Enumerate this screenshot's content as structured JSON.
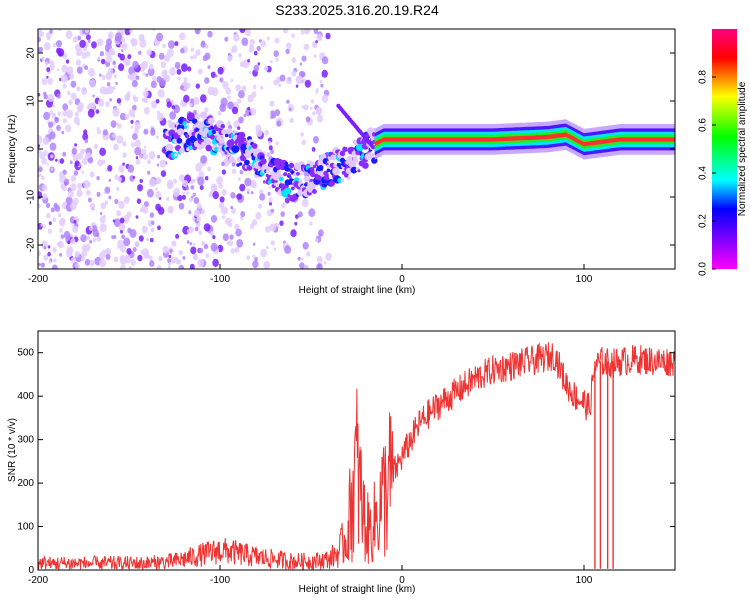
{
  "title": "S233.2025.316.20.19.R24",
  "chart_data": [
    {
      "type": "heatmap",
      "xlabel": "Height of straight line (km)",
      "ylabel": "Frequency (Hz)",
      "xlim": [
        -200,
        150
      ],
      "ylim": [
        -25,
        25
      ],
      "xticks": [
        -200,
        -100,
        0,
        100
      ],
      "yticks": [
        -20,
        -10,
        0,
        10,
        20
      ],
      "colorbar": {
        "label": "Normalized spectral amplitude",
        "range": [
          0,
          1
        ],
        "ticks": [
          0.0,
          0.2,
          0.4,
          0.6,
          0.8
        ],
        "colormap": "hsv-reversed (magenta-blue-cyan-green-yellow-red)"
      },
      "dominant_frequency_trace": {
        "x": [
          -130,
          -120,
          -110,
          -100,
          -90,
          -80,
          -70,
          -60,
          -50,
          -40,
          -30,
          -20,
          -15,
          -10,
          0,
          50,
          80,
          90,
          100,
          120,
          150
        ],
        "y": [
          1,
          3,
          4,
          2,
          0,
          -2,
          -5,
          -7,
          -6,
          -4,
          -3,
          0,
          1,
          2,
          2,
          2,
          2.5,
          3,
          1,
          2,
          2
        ]
      },
      "noise_region_x": [
        -200,
        -40
      ]
    },
    {
      "type": "line",
      "xlabel": "Height of straight line (km)",
      "ylabel": "SNR (10 * v/v)",
      "xlim": [
        -200,
        150
      ],
      "ylim": [
        0,
        550
      ],
      "xticks": [
        -200,
        -100,
        0,
        100
      ],
      "yticks": [
        0,
        100,
        200,
        300,
        400,
        500
      ],
      "line_color": "#ee3333",
      "series": [
        {
          "x": [
            -200,
            -180,
            -160,
            -140,
            -125,
            -115,
            -100,
            -92,
            -80,
            -70,
            -60,
            -50,
            -45,
            -40,
            -35,
            -30,
            -28,
            -25,
            -22,
            -20,
            -18,
            -15,
            -12,
            -10,
            -5,
            0,
            5,
            10,
            20,
            30,
            40,
            50,
            60,
            70,
            80,
            84,
            90,
            95,
            100,
            103,
            106,
            110,
            115,
            120,
            130,
            140,
            150
          ],
          "y": [
            15,
            15,
            15,
            15,
            20,
            30,
            45,
            40,
            30,
            25,
            20,
            20,
            22,
            25,
            40,
            80,
            150,
            240,
            150,
            100,
            90,
            110,
            150,
            170,
            220,
            260,
            300,
            340,
            380,
            410,
            440,
            460,
            470,
            480,
            490,
            495,
            430,
            400,
            385,
            370,
            470,
            480,
            475,
            480,
            485,
            480,
            480
          ]
        }
      ],
      "dropouts_x": [
        106,
        109,
        113,
        116
      ]
    }
  ]
}
